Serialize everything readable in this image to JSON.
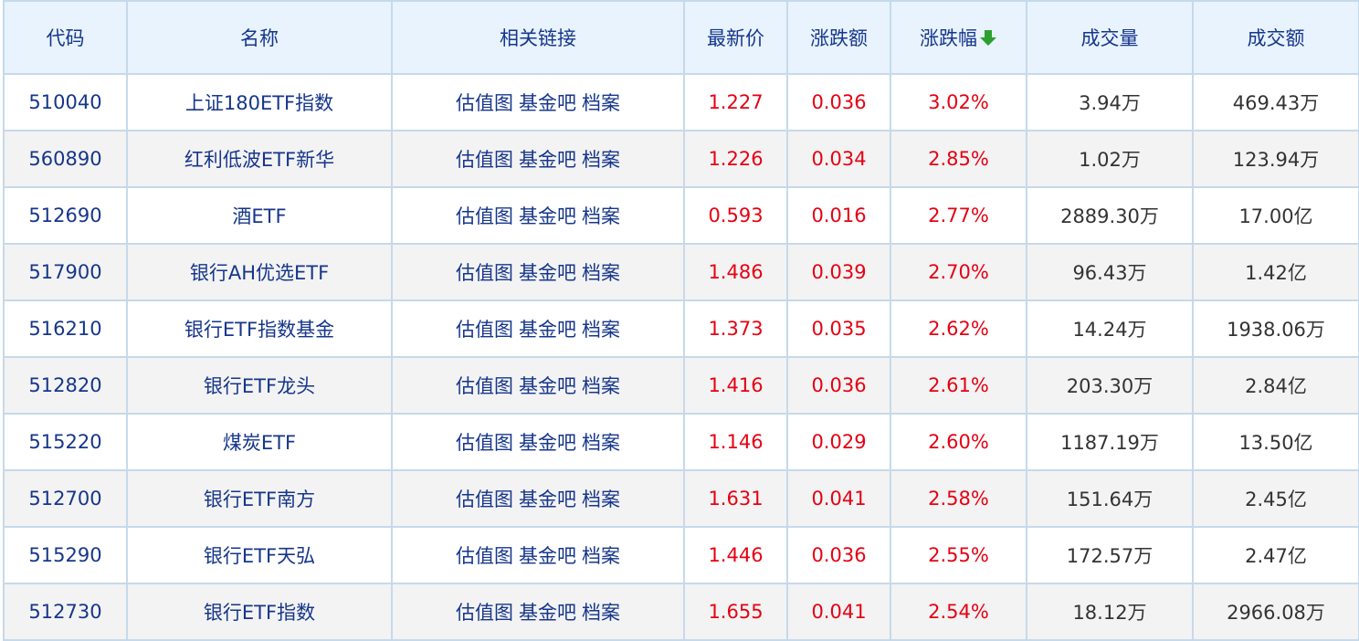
{
  "headers": {
    "code": "代码",
    "name": "名称",
    "links": "相关链接",
    "price": "最新价",
    "change": "涨跌额",
    "pct": "涨跌幅",
    "volume": "成交量",
    "amount": "成交额"
  },
  "sort": {
    "column": "涨跌幅",
    "direction": "descending",
    "icon": "arrow-down-icon",
    "color": "#2ca02c"
  },
  "link_labels": [
    "估值图",
    "基金吧",
    "档案"
  ],
  "colors": {
    "up": "#e60012",
    "link": "#16368b",
    "header_bg": "#e8f3fd"
  },
  "rows": [
    {
      "code": "510040",
      "name": "上证180ETF指数",
      "price": "1.227",
      "change": "0.036",
      "pct": "3.02%",
      "volume": "3.94万",
      "amount": "469.43万"
    },
    {
      "code": "560890",
      "name": "红利低波ETF新华",
      "price": "1.226",
      "change": "0.034",
      "pct": "2.85%",
      "volume": "1.02万",
      "amount": "123.94万"
    },
    {
      "code": "512690",
      "name": "酒ETF",
      "price": "0.593",
      "change": "0.016",
      "pct": "2.77%",
      "volume": "2889.30万",
      "amount": "17.00亿"
    },
    {
      "code": "517900",
      "name": "银行AH优选ETF",
      "price": "1.486",
      "change": "0.039",
      "pct": "2.70%",
      "volume": "96.43万",
      "amount": "1.42亿"
    },
    {
      "code": "516210",
      "name": "银行ETF指数基金",
      "price": "1.373",
      "change": "0.035",
      "pct": "2.62%",
      "volume": "14.24万",
      "amount": "1938.06万"
    },
    {
      "code": "512820",
      "name": "银行ETF龙头",
      "price": "1.416",
      "change": "0.036",
      "pct": "2.61%",
      "volume": "203.30万",
      "amount": "2.84亿"
    },
    {
      "code": "515220",
      "name": "煤炭ETF",
      "price": "1.146",
      "change": "0.029",
      "pct": "2.60%",
      "volume": "1187.19万",
      "amount": "13.50亿"
    },
    {
      "code": "512700",
      "name": "银行ETF南方",
      "price": "1.631",
      "change": "0.041",
      "pct": "2.58%",
      "volume": "151.64万",
      "amount": "2.45亿"
    },
    {
      "code": "515290",
      "name": "银行ETF天弘",
      "price": "1.446",
      "change": "0.036",
      "pct": "2.55%",
      "volume": "172.57万",
      "amount": "2.47亿"
    },
    {
      "code": "512730",
      "name": "银行ETF指数",
      "price": "1.655",
      "change": "0.041",
      "pct": "2.54%",
      "volume": "18.12万",
      "amount": "2966.08万"
    }
  ]
}
